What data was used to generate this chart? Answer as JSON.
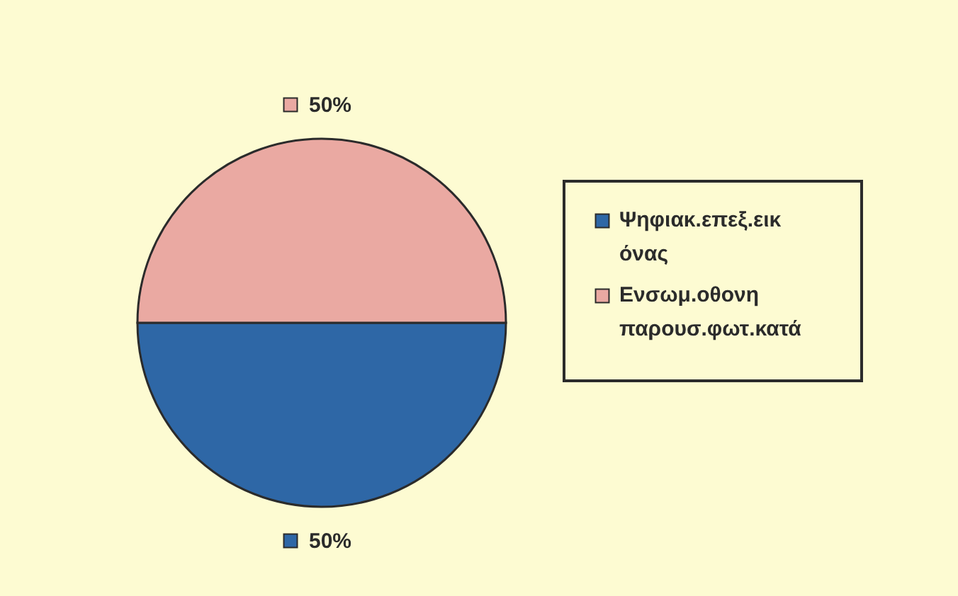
{
  "chart_data": {
    "type": "pie",
    "categories": [
      "Ψηφιακ.επεξ.εικόνας",
      "Ενσωμ.οθονη παρουσ.φωτ.κατά"
    ],
    "values": [
      50,
      50
    ],
    "colors": [
      "#2e67a6",
      "#eaa9a2"
    ],
    "value_labels": [
      "50%",
      "50%"
    ],
    "legend": "right"
  }
}
